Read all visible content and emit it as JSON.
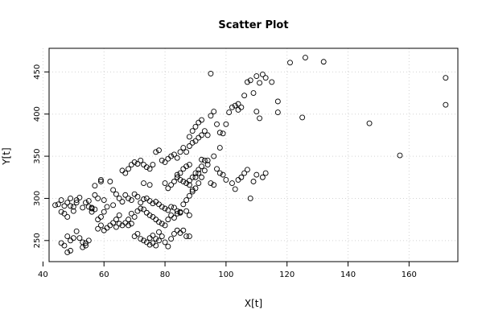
{
  "chart_data": {
    "type": "scatter",
    "title": "Scatter Plot",
    "xlabel": "X[t]",
    "ylabel": "Y[t]",
    "xlim": [
      42,
      176
    ],
    "ylim": [
      225,
      478
    ],
    "xticks": [
      40,
      60,
      80,
      100,
      120,
      140,
      160
    ],
    "yticks": [
      250,
      300,
      350,
      400,
      450
    ],
    "grid": true,
    "points": [
      [
        44,
        292
      ],
      [
        45,
        293
      ],
      [
        46,
        298
      ],
      [
        46,
        284
      ],
      [
        47,
        282
      ],
      [
        47,
        291
      ],
      [
        48,
        295
      ],
      [
        48,
        278
      ],
      [
        49,
        300
      ],
      [
        49,
        291
      ],
      [
        50,
        290
      ],
      [
        50,
        285
      ],
      [
        51,
        298
      ],
      [
        51,
        295
      ],
      [
        52,
        301
      ],
      [
        53,
        289
      ],
      [
        54,
        295
      ],
      [
        55,
        297
      ],
      [
        55,
        290
      ],
      [
        56,
        288
      ],
      [
        56,
        284
      ],
      [
        57,
        315
      ],
      [
        57,
        304
      ],
      [
        58,
        300
      ],
      [
        59,
        322
      ],
      [
        59,
        320
      ],
      [
        60,
        298
      ],
      [
        46,
        247
      ],
      [
        47,
        244
      ],
      [
        48,
        236
      ],
      [
        49,
        238
      ],
      [
        48,
        255
      ],
      [
        49,
        250
      ],
      [
        50,
        253
      ],
      [
        51,
        261
      ],
      [
        52,
        253
      ],
      [
        53,
        248
      ],
      [
        54,
        247
      ],
      [
        53,
        242
      ],
      [
        54,
        244
      ],
      [
        55,
        250
      ],
      [
        56,
        289
      ],
      [
        57,
        287
      ],
      [
        58,
        264
      ],
      [
        59,
        268
      ],
      [
        60,
        262
      ],
      [
        61,
        265
      ],
      [
        62,
        268
      ],
      [
        63,
        271
      ],
      [
        64,
        266
      ],
      [
        65,
        270
      ],
      [
        66,
        268
      ],
      [
        67,
        271
      ],
      [
        68,
        268
      ],
      [
        69,
        270
      ],
      [
        62,
        320
      ],
      [
        63,
        310
      ],
      [
        64,
        305
      ],
      [
        65,
        300
      ],
      [
        66,
        296
      ],
      [
        67,
        304
      ],
      [
        68,
        300
      ],
      [
        69,
        298
      ],
      [
        70,
        305
      ],
      [
        71,
        302
      ],
      [
        72,
        295
      ],
      [
        73,
        299
      ],
      [
        74,
        300
      ],
      [
        75,
        297
      ],
      [
        76,
        294
      ],
      [
        77,
        296
      ],
      [
        78,
        293
      ],
      [
        79,
        290
      ],
      [
        80,
        288
      ],
      [
        81,
        286
      ],
      [
        82,
        290
      ],
      [
        83,
        289
      ],
      [
        84,
        285
      ],
      [
        85,
        283
      ],
      [
        66,
        333
      ],
      [
        67,
        330
      ],
      [
        68,
        335
      ],
      [
        69,
        340
      ],
      [
        70,
        343
      ],
      [
        71,
        341
      ],
      [
        72,
        345
      ],
      [
        73,
        340
      ],
      [
        74,
        337
      ],
      [
        75,
        335
      ],
      [
        76,
        340
      ],
      [
        77,
        355
      ],
      [
        78,
        357
      ],
      [
        79,
        345
      ],
      [
        80,
        343
      ],
      [
        81,
        347
      ],
      [
        82,
        350
      ],
      [
        83,
        352
      ],
      [
        84,
        348
      ],
      [
        85,
        355
      ],
      [
        86,
        360
      ],
      [
        87,
        355
      ],
      [
        88,
        362
      ],
      [
        89,
        366
      ],
      [
        90,
        368
      ],
      [
        91,
        372
      ],
      [
        92,
        375
      ],
      [
        68,
        275
      ],
      [
        69,
        282
      ],
      [
        70,
        278
      ],
      [
        71,
        285
      ],
      [
        72,
        288
      ],
      [
        73,
        287
      ],
      [
        74,
        283
      ],
      [
        75,
        280
      ],
      [
        76,
        278
      ],
      [
        77,
        275
      ],
      [
        78,
        272
      ],
      [
        79,
        270
      ],
      [
        80,
        268
      ],
      [
        81,
        275
      ],
      [
        82,
        280
      ],
      [
        83,
        277
      ],
      [
        84,
        282
      ],
      [
        85,
        284
      ],
      [
        70,
        255
      ],
      [
        71,
        258
      ],
      [
        72,
        252
      ],
      [
        73,
        250
      ],
      [
        74,
        248
      ],
      [
        75,
        253
      ],
      [
        76,
        256
      ],
      [
        77,
        252
      ],
      [
        78,
        250
      ],
      [
        79,
        255
      ],
      [
        80,
        248
      ],
      [
        81,
        243
      ],
      [
        82,
        252
      ],
      [
        83,
        258
      ],
      [
        84,
        262
      ],
      [
        85,
        259
      ],
      [
        86,
        262
      ],
      [
        87,
        255
      ],
      [
        78,
        260
      ],
      [
        76,
        247
      ],
      [
        75,
        245
      ],
      [
        77,
        244
      ],
      [
        80,
        318
      ],
      [
        81,
        312
      ],
      [
        82,
        316
      ],
      [
        83,
        320
      ],
      [
        84,
        325
      ],
      [
        85,
        322
      ],
      [
        86,
        320
      ],
      [
        87,
        318
      ],
      [
        88,
        321
      ],
      [
        89,
        325
      ],
      [
        90,
        330
      ],
      [
        91,
        334
      ],
      [
        92,
        338
      ],
      [
        88,
        340
      ],
      [
        87,
        338
      ],
      [
        86,
        335
      ],
      [
        85,
        330
      ],
      [
        84,
        328
      ],
      [
        88,
        316
      ],
      [
        89,
        310
      ],
      [
        90,
        325
      ],
      [
        91,
        330
      ],
      [
        92,
        346
      ],
      [
        93,
        345
      ],
      [
        94,
        340
      ],
      [
        95,
        318
      ],
      [
        96,
        316
      ],
      [
        97,
        335
      ],
      [
        98,
        330
      ],
      [
        99,
        328
      ],
      [
        100,
        322
      ],
      [
        102,
        318
      ],
      [
        103,
        311
      ],
      [
        104,
        322
      ],
      [
        105,
        325
      ],
      [
        106,
        330
      ],
      [
        107,
        334
      ],
      [
        108,
        300
      ],
      [
        109,
        320
      ],
      [
        110,
        328
      ],
      [
        112,
        325
      ],
      [
        113,
        330
      ],
      [
        88,
        373
      ],
      [
        89,
        380
      ],
      [
        90,
        385
      ],
      [
        91,
        390
      ],
      [
        92,
        393
      ],
      [
        93,
        380
      ],
      [
        94,
        375
      ],
      [
        95,
        398
      ],
      [
        96,
        403
      ],
      [
        97,
        388
      ],
      [
        98,
        378
      ],
      [
        99,
        377
      ],
      [
        100,
        388
      ],
      [
        101,
        402
      ],
      [
        102,
        408
      ],
      [
        103,
        410
      ],
      [
        104,
        412
      ],
      [
        105,
        408
      ],
      [
        106,
        422
      ],
      [
        107,
        438
      ],
      [
        108,
        440
      ],
      [
        110,
        445
      ],
      [
        111,
        437
      ],
      [
        112,
        447
      ],
      [
        113,
        443
      ],
      [
        115,
        438
      ],
      [
        117,
        415
      ],
      [
        117,
        402
      ],
      [
        121,
        461
      ],
      [
        125,
        396
      ],
      [
        126,
        467
      ],
      [
        132,
        462
      ],
      [
        147,
        389
      ],
      [
        157,
        351
      ],
      [
        172,
        443
      ],
      [
        172,
        411
      ],
      [
        95,
        448
      ],
      [
        110,
        403
      ],
      [
        111,
        395
      ],
      [
        109,
        425
      ],
      [
        104,
        405
      ],
      [
        98,
        360
      ],
      [
        96,
        350
      ],
      [
        94,
        345
      ],
      [
        93,
        333
      ],
      [
        92,
        325
      ],
      [
        91,
        318
      ],
      [
        90,
        312
      ],
      [
        89,
        308
      ],
      [
        88,
        303
      ],
      [
        87,
        298
      ],
      [
        86,
        293
      ],
      [
        88,
        280
      ],
      [
        87,
        285
      ],
      [
        88,
        255
      ],
      [
        75,
        316
      ],
      [
        73,
        318
      ],
      [
        65,
        280
      ],
      [
        64,
        275
      ],
      [
        63,
        292
      ],
      [
        61,
        290
      ],
      [
        58,
        275
      ],
      [
        59,
        278
      ],
      [
        60,
        284
      ]
    ]
  }
}
